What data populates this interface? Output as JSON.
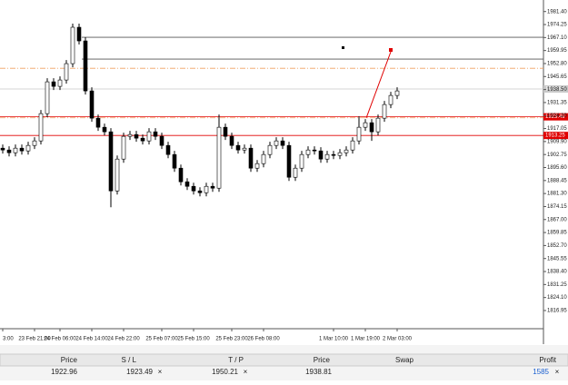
{
  "chart_data": {
    "type": "candlestick",
    "categories": [
      "3:00",
      null,
      null,
      null,
      null,
      "23 Feb 21:00",
      null,
      null,
      null,
      "24 Feb 06:00",
      null,
      null,
      null,
      null,
      "24 Feb 14:00",
      null,
      null,
      null,
      null,
      "24 Feb 22:00",
      null,
      null,
      null,
      null,
      null,
      "25 Feb 07:00",
      null,
      null,
      null,
      null,
      "25 Feb 15:00",
      null,
      null,
      null,
      null,
      null,
      "25 Feb 23:00",
      null,
      null,
      null,
      null,
      "26 Feb 08:00",
      null,
      null,
      null,
      null,
      null,
      null,
      null,
      null,
      null,
      null,
      "1 Mar 10:00",
      null,
      null,
      null,
      null,
      "1 Mar 19:00",
      null,
      null,
      null,
      null,
      "2 Mar 03:00"
    ],
    "open": [
      1906.25,
      1905.25,
      1903.75,
      1906.25,
      1904.75,
      1907.75,
      1910.25,
      1925.25,
      1942.75,
      1940.25,
      1943.75,
      1952.75,
      1972.75,
      1965.25,
      1937.75,
      1922.75,
      1917.75,
      1915.25,
      1882.75,
      1900.25,
      1912.75,
      1913.75,
      1911.75,
      1910.25,
      1915.25,
      1912.75,
      1907.75,
      1902.75,
      1895.25,
      1887.75,
      1885.25,
      1882.75,
      1881.75,
      1885.25,
      1884.25,
      1917.75,
      1912.75,
      1907.75,
      1905.25,
      1906.25,
      1895.25,
      1897.75,
      1902.75,
      1907.75,
      1910.25,
      1907.75,
      1890.25,
      1895.25,
      1902.75,
      1905.25,
      1904.75,
      1900.25,
      1902.75,
      1902.25,
      1903.75,
      1905.25,
      1910.25,
      1917.75,
      1920.25,
      1915.25,
      1922.75,
      1930.25,
      1935.25
    ],
    "high": [
      1908.25,
      1907.25,
      1908.25,
      1908.25,
      1909.75,
      1912.25,
      1927.25,
      1944.75,
      1944.75,
      1945.75,
      1954.75,
      1974.75,
      1974.75,
      1967.25,
      1939.75,
      1924.75,
      1919.75,
      1917.25,
      1902.25,
      1914.75,
      1915.75,
      1915.75,
      1913.75,
      1917.25,
      1917.25,
      1914.75,
      1909.75,
      1904.75,
      1897.25,
      1889.75,
      1887.25,
      1884.75,
      1887.25,
      1887.25,
      1924.75,
      1919.75,
      1914.75,
      1909.75,
      1908.25,
      1908.25,
      1899.75,
      1904.75,
      1909.75,
      1912.25,
      1912.25,
      1909.75,
      1897.25,
      1904.75,
      1907.25,
      1907.25,
      1906.75,
      1904.75,
      1904.75,
      1905.75,
      1907.25,
      1912.25,
      1923.75,
      1922.25,
      1922.25,
      1924.75,
      1932.25,
      1937.25,
      1939.75
    ],
    "low": [
      1903.25,
      1901.75,
      1901.75,
      1902.75,
      1902.75,
      1905.75,
      1908.25,
      1923.25,
      1938.25,
      1938.25,
      1941.75,
      1950.75,
      1963.25,
      1935.75,
      1920.75,
      1915.75,
      1913.25,
      1873.75,
      1880.75,
      1898.25,
      1910.75,
      1909.75,
      1908.25,
      1908.25,
      1910.75,
      1905.75,
      1900.75,
      1893.25,
      1885.75,
      1883.25,
      1880.75,
      1879.75,
      1879.75,
      1882.25,
      1882.25,
      1910.75,
      1905.75,
      1903.25,
      1903.25,
      1893.25,
      1893.25,
      1895.75,
      1900.75,
      1905.75,
      1905.75,
      1888.25,
      1888.25,
      1893.25,
      1900.75,
      1902.75,
      1898.25,
      1898.25,
      1900.25,
      1900.25,
      1901.75,
      1903.25,
      1908.25,
      1915.75,
      1910.25,
      1913.25,
      1920.75,
      1928.25,
      1933.25
    ],
    "close": [
      1905.25,
      1903.75,
      1906.25,
      1904.75,
      1907.75,
      1910.25,
      1925.25,
      1942.75,
      1940.25,
      1943.75,
      1952.75,
      1972.75,
      1965.25,
      1937.75,
      1922.75,
      1917.75,
      1915.25,
      1882.75,
      1900.25,
      1912.75,
      1913.75,
      1911.75,
      1910.25,
      1915.25,
      1912.75,
      1907.75,
      1902.75,
      1895.25,
      1887.75,
      1885.25,
      1882.75,
      1881.75,
      1885.25,
      1884.25,
      1917.75,
      1912.75,
      1907.75,
      1905.25,
      1906.25,
      1895.25,
      1897.75,
      1902.75,
      1907.75,
      1910.25,
      1907.75,
      1890.25,
      1895.25,
      1902.75,
      1905.25,
      1904.75,
      1900.25,
      1902.75,
      1902.25,
      1903.75,
      1905.25,
      1910.25,
      1917.75,
      1920.25,
      1915.25,
      1922.75,
      1930.25,
      1935.25,
      1937.75
    ],
    "ylim": [
      1806.95,
      1987.75
    ],
    "yticks": [
      1816.95,
      {
        "value": 1824.1,
        "label": "1824.10"
      },
      1831.25,
      {
        "value": 1838.4,
        "label": "1838.40"
      },
      1845.55,
      {
        "value": 1852.7,
        "label": "1852.70"
      },
      1859.85,
      {
        "value": 1867,
        "label": "1867.00"
      },
      1874.15,
      {
        "value": 1881.3,
        "label": "1881.30"
      },
      1888.45,
      {
        "value": 1895.6,
        "label": "1895.60"
      },
      1902.75,
      {
        "value": 1909.9,
        "label": "1909.90"
      },
      1917.05,
      {
        "value": 1924.2,
        "label": "1924.20"
      },
      1931.35,
      {
        "value": 1938.5,
        "label": "1938.50"
      },
      1945.65,
      {
        "value": 1952.8,
        "label": "1952.80"
      },
      1959.95,
      {
        "value": 1967.1,
        "label": "1967.10"
      },
      1974.25,
      {
        "value": 1981.4,
        "label": "1981.40"
      }
    ],
    "up_color": "#ffffff",
    "down_color": "#000000",
    "levels": [
      {
        "value": 1967.25,
        "color": "#555555",
        "style": "box"
      },
      {
        "value": 1955.25,
        "color": "#555555",
        "style": "box"
      },
      {
        "value": 1950.21,
        "color": "#f0a060",
        "style": "dashdot"
      },
      {
        "value": 1938.81,
        "color": "#c8c8c8",
        "style": "solid",
        "tag": true
      },
      {
        "value": 1923.49,
        "color": "#e00000",
        "style": "solid",
        "tag": true
      },
      {
        "value": 1922.96,
        "color": "#f0a060",
        "style": "dashdot"
      },
      {
        "value": 1913.25,
        "color": "#e00000",
        "style": "solid",
        "tag": true
      }
    ]
  },
  "terminal": {
    "headers": [
      "Price",
      "S / L",
      "T / P",
      "Price",
      "Swap",
      "Profit"
    ],
    "row": {
      "price": "1922.96",
      "sl": "1923.49",
      "tp": "1950.21",
      "current": "1938.81",
      "profit": "1585"
    }
  }
}
